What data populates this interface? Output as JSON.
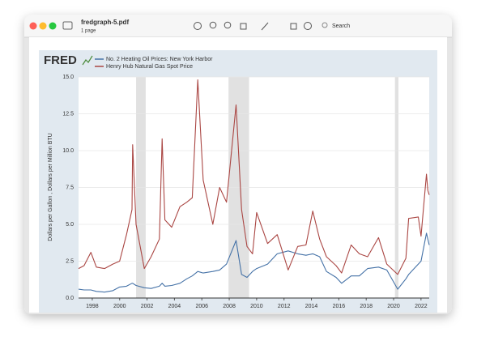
{
  "window": {
    "title": "fredgraph-5.pdf",
    "subtitle": "1 page",
    "search": "Search"
  },
  "chart_data": {
    "type": "line",
    "logo": "FRED",
    "ylabel": "Dollars per Gallon , Dollars per Million BTU",
    "x": [
      1997,
      1997.4,
      1997.9,
      1998.3,
      1998.9,
      1999.5,
      2000.0,
      2000.5,
      2000.9,
      2000.95,
      2001.2,
      2001.8,
      2002.3,
      2002.9,
      2003.1,
      2003.3,
      2003.8,
      2004.4,
      2004.9,
      2005.3,
      2005.7,
      2006.1,
      2006.8,
      2007.3,
      2007.8,
      2008.5,
      2008.9,
      2009.3,
      2009.7,
      2010.0,
      2010.8,
      2011.5,
      2012.3,
      2013.0,
      2013.6,
      2014.1,
      2014.6,
      2015.1,
      2015.8,
      2016.2,
      2016.9,
      2017.5,
      2018.1,
      2018.9,
      2019.5,
      2020.3,
      2020.9,
      2021.1,
      2021.8,
      2022.0,
      2022.4,
      2022.5,
      2022.6
    ],
    "series": [
      {
        "name": "No. 2 Heating Oil Prices: New York Harbor",
        "color": "#4572a7",
        "values": [
          0.6,
          0.55,
          0.55,
          0.45,
          0.4,
          0.5,
          0.75,
          0.8,
          1.0,
          1.0,
          0.85,
          0.7,
          0.65,
          0.8,
          1.0,
          0.8,
          0.85,
          1.0,
          1.3,
          1.5,
          1.8,
          1.7,
          1.8,
          1.9,
          2.3,
          3.9,
          1.6,
          1.4,
          1.8,
          2.0,
          2.3,
          3.0,
          3.2,
          3.0,
          2.9,
          3.0,
          2.8,
          1.8,
          1.4,
          1.0,
          1.5,
          1.5,
          2.0,
          2.1,
          1.9,
          0.6,
          1.3,
          1.6,
          2.3,
          2.5,
          4.4,
          4.0,
          3.6
        ]
      },
      {
        "name": "Henry Hub Natural Gas Spot Price",
        "color": "#aa4643",
        "values": [
          2.0,
          2.2,
          3.1,
          2.1,
          2.0,
          2.3,
          2.5,
          4.3,
          6.0,
          10.4,
          5.0,
          2.0,
          2.8,
          4.0,
          10.8,
          5.3,
          4.8,
          6.2,
          6.5,
          6.8,
          14.8,
          8.0,
          5.0,
          7.5,
          6.5,
          13.1,
          6.0,
          3.5,
          3.0,
          5.8,
          3.7,
          4.3,
          1.9,
          3.5,
          3.6,
          5.9,
          4.0,
          2.8,
          2.2,
          1.7,
          3.6,
          3.0,
          2.8,
          4.1,
          2.3,
          1.6,
          2.7,
          5.4,
          5.5,
          4.2,
          8.4,
          7.3,
          7.0
        ]
      }
    ],
    "recessions": [
      [
        2001.2,
        2001.9
      ],
      [
        2007.95,
        2009.45
      ],
      [
        2020.1,
        2020.35
      ]
    ],
    "xlim": [
      1997,
      2022.6
    ],
    "ylim": [
      0,
      15
    ],
    "xticks": [
      1998,
      2000,
      2002,
      2004,
      2006,
      2008,
      2010,
      2012,
      2014,
      2016,
      2018,
      2020,
      2022
    ],
    "yticks": [
      {
        "value": 0,
        "label": "0.0"
      },
      2.5,
      {
        "value": 5,
        "label": "5.0"
      },
      7.5,
      {
        "value": 10,
        "label": "10.0"
      },
      12.5,
      {
        "value": 15,
        "label": "15.0"
      }
    ],
    "grid": true
  }
}
